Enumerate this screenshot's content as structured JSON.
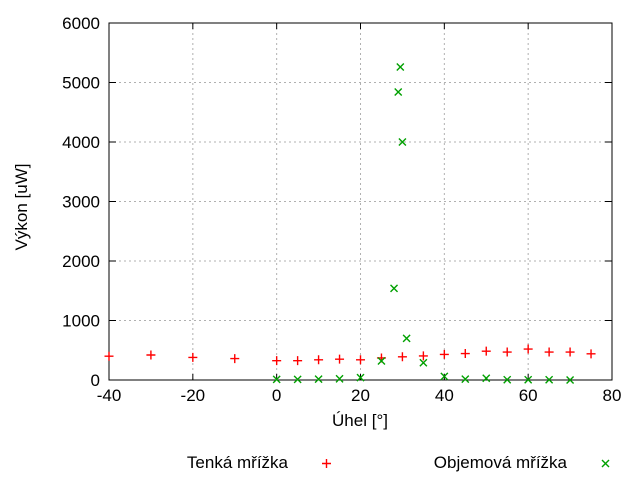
{
  "chart_data": {
    "type": "scatter",
    "title": "",
    "xlabel": "Úhel [°]",
    "ylabel": "Výkon [uW]",
    "xlim": [
      -40,
      80
    ],
    "ylim": [
      0,
      6000
    ],
    "x_ticks": [
      -40,
      -20,
      0,
      20,
      40,
      60,
      80
    ],
    "y_ticks": [
      0,
      1000,
      2000,
      3000,
      4000,
      5000,
      6000
    ],
    "grid": "dashed",
    "legend_position": "below-plot",
    "colors": {
      "grid": "#b0b0b0",
      "axis": "#000000",
      "background": "#ffffff"
    },
    "series": [
      {
        "name": "Tenká mřížka",
        "marker": "plus",
        "color": "#ff0000",
        "points": [
          [
            -40,
            400
          ],
          [
            -30,
            420
          ],
          [
            -20,
            380
          ],
          [
            -10,
            360
          ],
          [
            0,
            325
          ],
          [
            5,
            325
          ],
          [
            10,
            340
          ],
          [
            15,
            350
          ],
          [
            20,
            340
          ],
          [
            25,
            370
          ],
          [
            30,
            390
          ],
          [
            35,
            405
          ],
          [
            40,
            430
          ],
          [
            45,
            445
          ],
          [
            50,
            485
          ],
          [
            55,
            470
          ],
          [
            60,
            520
          ],
          [
            65,
            470
          ],
          [
            70,
            470
          ],
          [
            75,
            440
          ]
        ]
      },
      {
        "name": "Objemová mřížka",
        "marker": "cross",
        "color": "#00a000",
        "points": [
          [
            0,
            10
          ],
          [
            5,
            10
          ],
          [
            10,
            15
          ],
          [
            15,
            20
          ],
          [
            20,
            40
          ],
          [
            25,
            320
          ],
          [
            28,
            1540
          ],
          [
            29,
            4840
          ],
          [
            29.5,
            5260
          ],
          [
            30,
            4000
          ],
          [
            31,
            700
          ],
          [
            35,
            290
          ],
          [
            40,
            60
          ],
          [
            45,
            15
          ],
          [
            50,
            30
          ],
          [
            55,
            5
          ],
          [
            60,
            5
          ],
          [
            65,
            5
          ],
          [
            70,
            0
          ]
        ]
      }
    ]
  }
}
